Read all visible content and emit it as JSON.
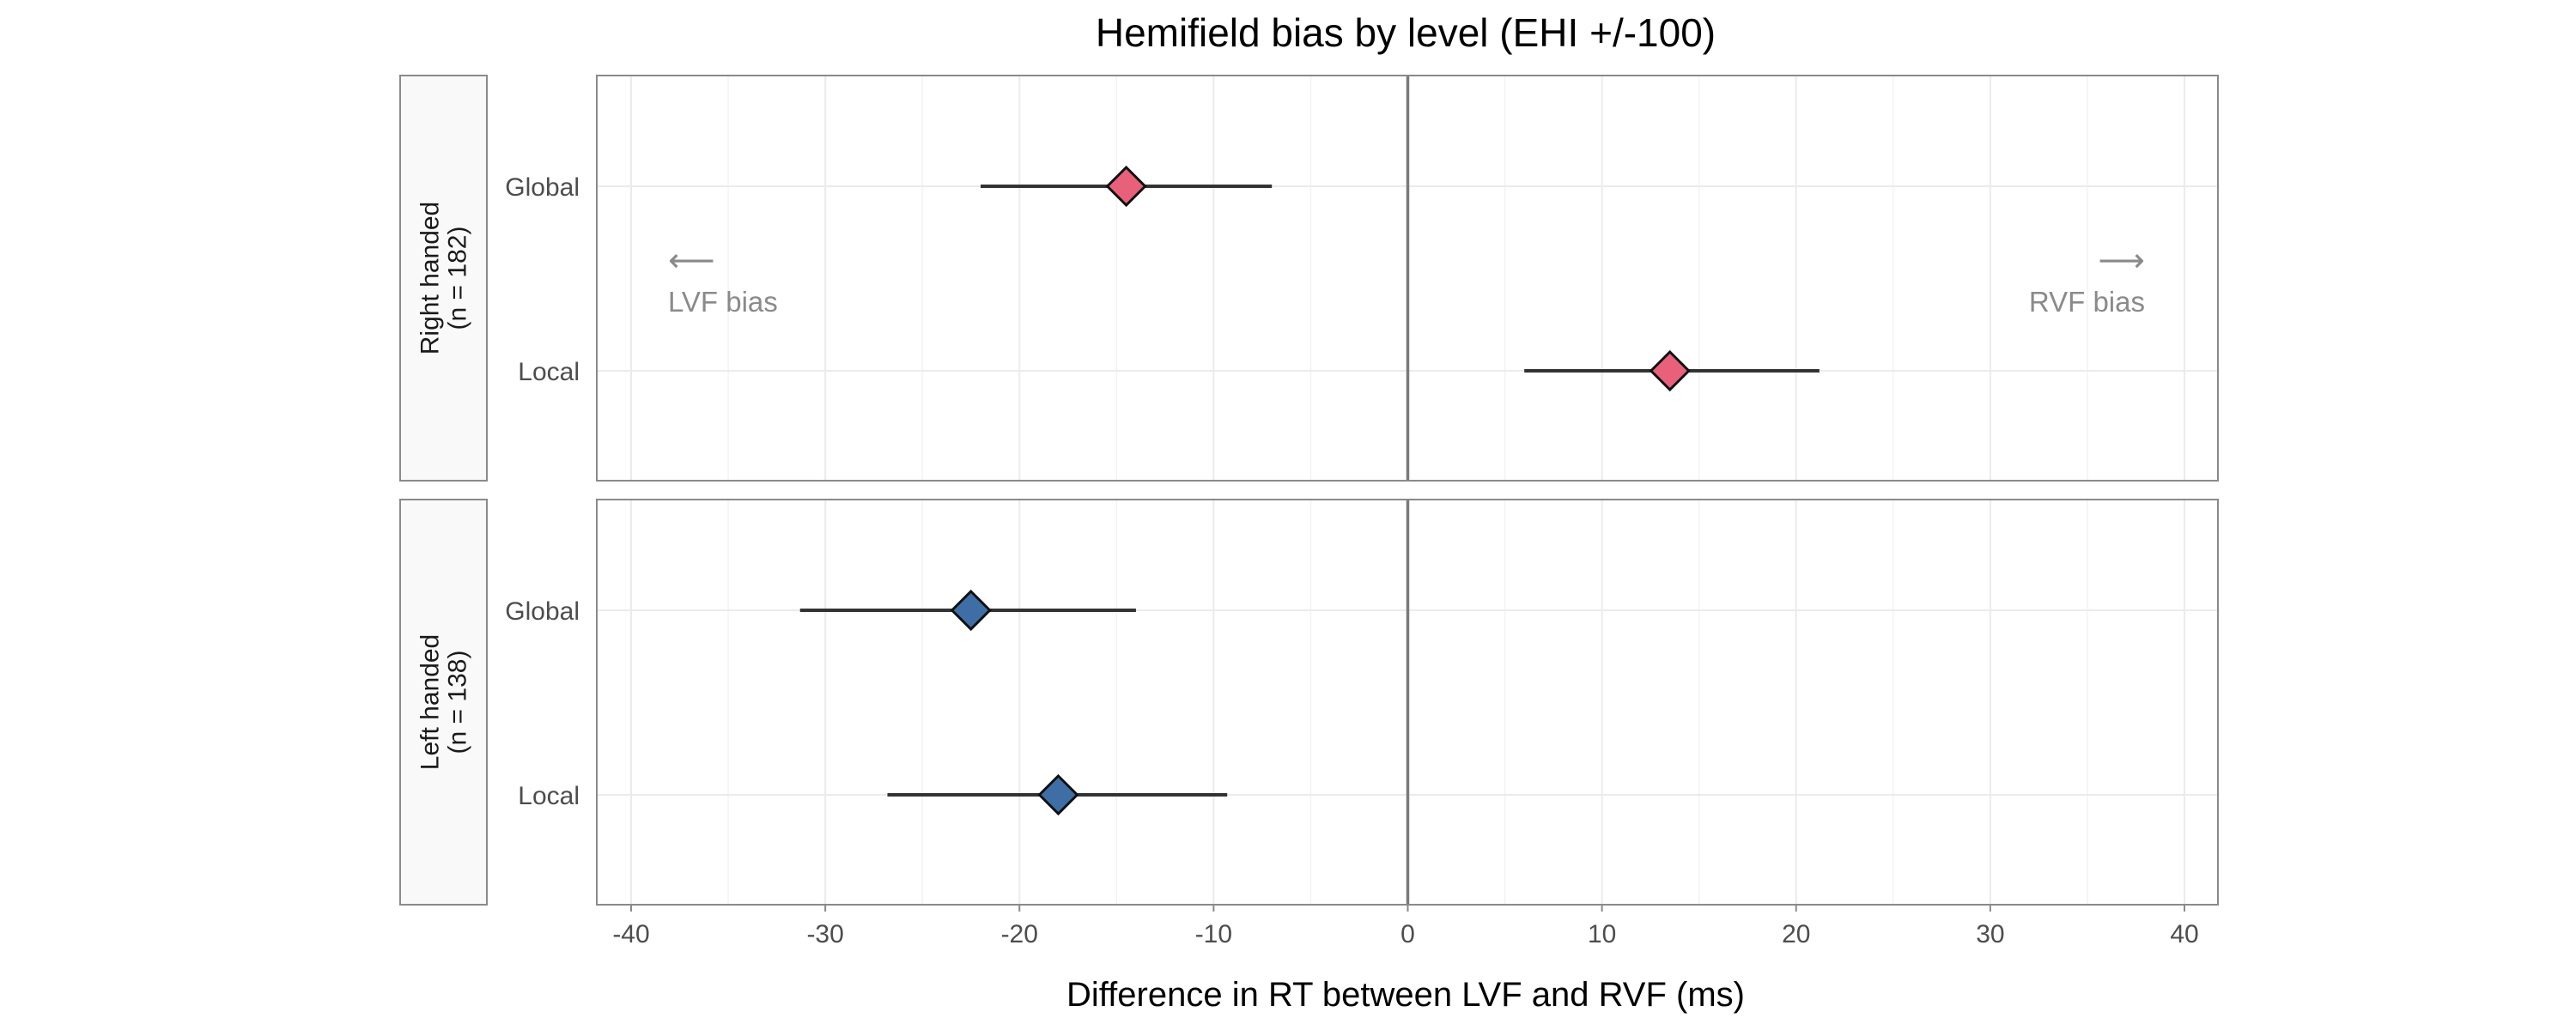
{
  "chart_data": {
    "type": "scatter",
    "title": "Hemifield bias by level (EHI +/-100)",
    "xlabel": "Difference in RT between LVF and RVF (ms)",
    "ylabel": "",
    "xlim": [
      -40,
      40
    ],
    "x_ticks": [
      -40,
      -30,
      -20,
      -10,
      0,
      10,
      20,
      30,
      40
    ],
    "grid": true,
    "reference_line_x": 0,
    "categories": [
      "Global",
      "Local"
    ],
    "panels": [
      {
        "strip_label": [
          "Right handed",
          "(n = 182)"
        ],
        "color": "#e8607a",
        "marker": "diamond",
        "points": [
          {
            "category": "Global",
            "estimate": -14.5,
            "ci_low": -22.0,
            "ci_high": -7.0
          },
          {
            "category": "Local",
            "estimate": 13.5,
            "ci_low": 6.0,
            "ci_high": 21.2
          }
        ],
        "annotations": {
          "left_arrow": "⟵",
          "left_text": "LVF bias",
          "right_arrow": "⟶",
          "right_text": "RVF bias"
        }
      },
      {
        "strip_label": [
          "Left handed",
          "(n = 138)"
        ],
        "color": "#3f6ea6",
        "marker": "diamond",
        "points": [
          {
            "category": "Global",
            "estimate": -22.5,
            "ci_low": -31.3,
            "ci_high": -14.0
          },
          {
            "category": "Local",
            "estimate": -18.0,
            "ci_low": -26.8,
            "ci_high": -9.3
          }
        ]
      }
    ]
  }
}
